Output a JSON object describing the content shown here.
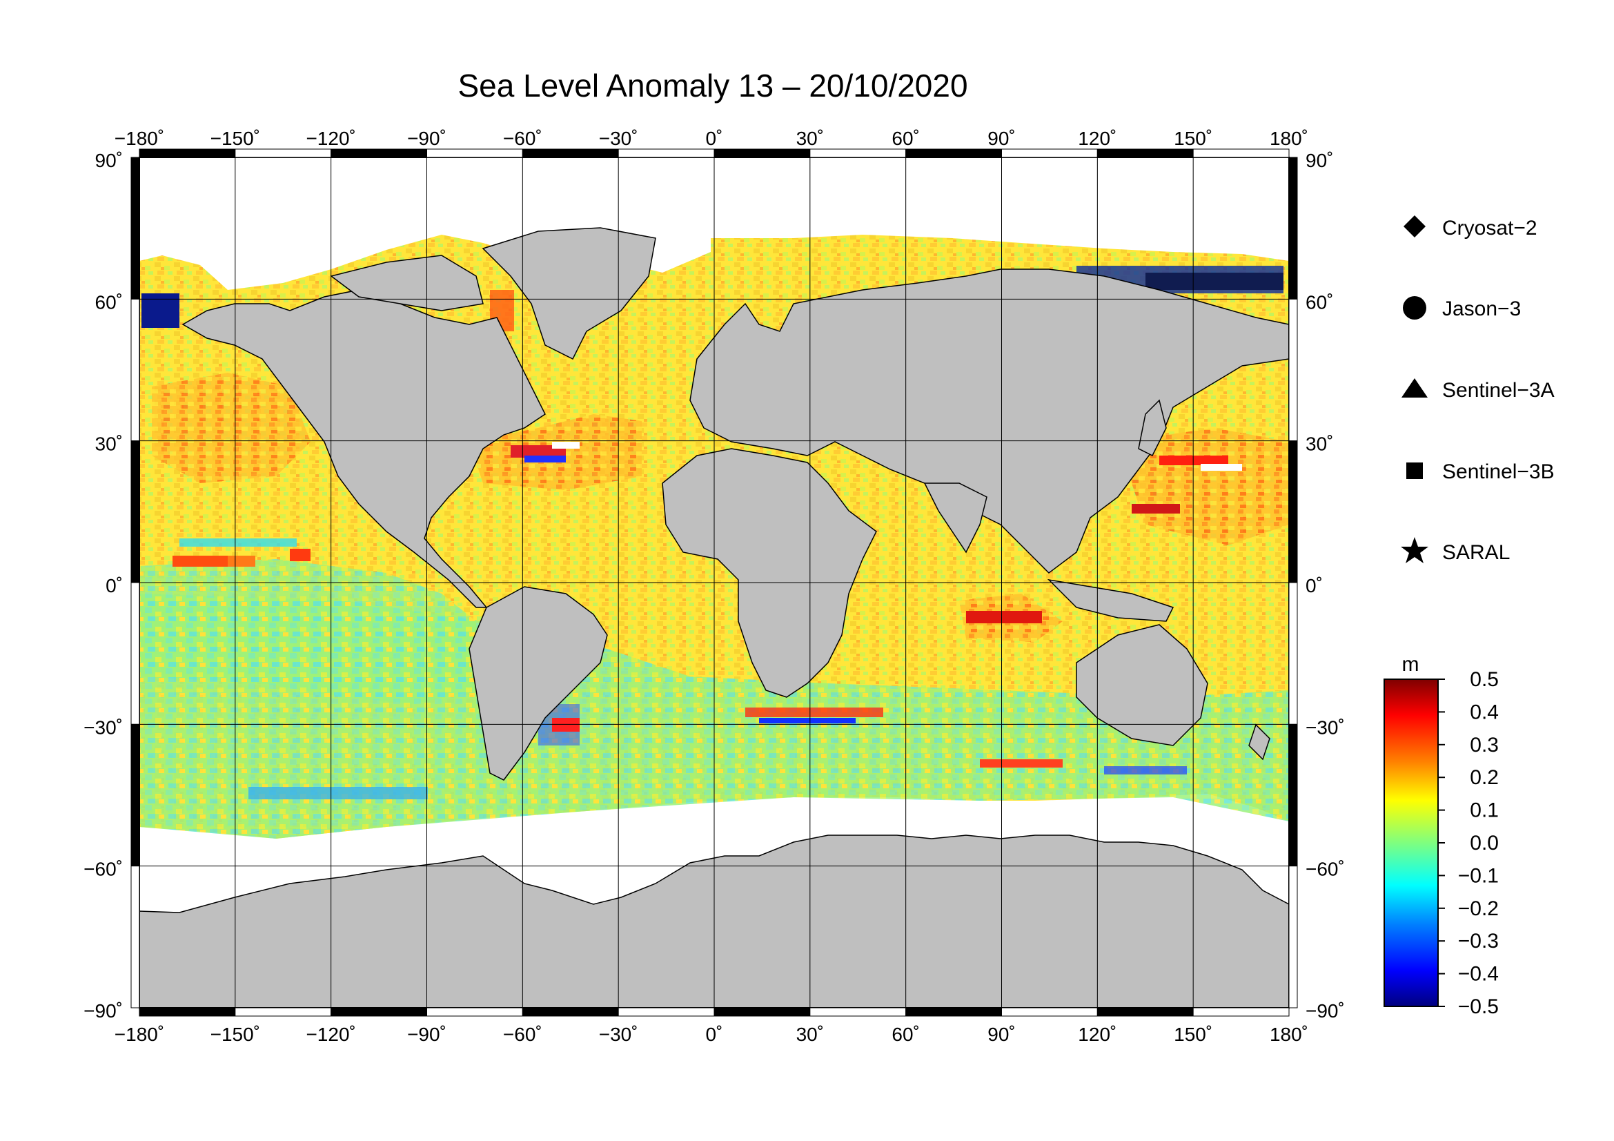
{
  "title": "Sea Level Anomaly 13 – 20/10/2020",
  "axes": {
    "longitude_ticks": [
      "−180˚",
      "−150˚",
      "−120˚",
      "−90˚",
      "−60˚",
      "−30˚",
      "0˚",
      "30˚",
      "60˚",
      "90˚",
      "120˚",
      "150˚",
      "180˚"
    ],
    "latitude_ticks_left": [
      "90˚",
      "60˚",
      "30˚",
      "0˚",
      "−30˚",
      "−60˚",
      "−90˚"
    ],
    "latitude_ticks_right": [
      "90˚",
      "60˚",
      "30˚",
      "0˚",
      "−30˚",
      "−60˚",
      "−90˚"
    ],
    "lon_range": [
      -180,
      180
    ],
    "lat_range": [
      -90,
      90
    ],
    "grid": true,
    "grid_step_deg": 30
  },
  "legend": {
    "placement": "right",
    "items": [
      {
        "label": "Cryosat−2",
        "marker": "diamond"
      },
      {
        "label": "Jason−3",
        "marker": "circle"
      },
      {
        "label": "Sentinel−3A",
        "marker": "triangle"
      },
      {
        "label": "Sentinel−3B",
        "marker": "square"
      },
      {
        "label": "SARAL",
        "marker": "star"
      }
    ]
  },
  "colorbar": {
    "unit": "m",
    "range": [
      -0.5,
      0.5
    ],
    "tick_labels": [
      "0.5",
      "0.4",
      "0.3",
      "0.2",
      "0.1",
      "0.0",
      "−0.1",
      "−0.2",
      "−0.3",
      "−0.4",
      "−0.5"
    ],
    "colors": [
      "#00007f",
      "#0000ff",
      "#007fff",
      "#00ffff",
      "#7fff7f",
      "#ffff00",
      "#ff7f00",
      "#ff0000",
      "#7f0000"
    ]
  },
  "colors": {
    "land": "#bfbfbf",
    "ice_no_data": "#ffffff",
    "ocean_dominant": "#ffee40"
  }
}
